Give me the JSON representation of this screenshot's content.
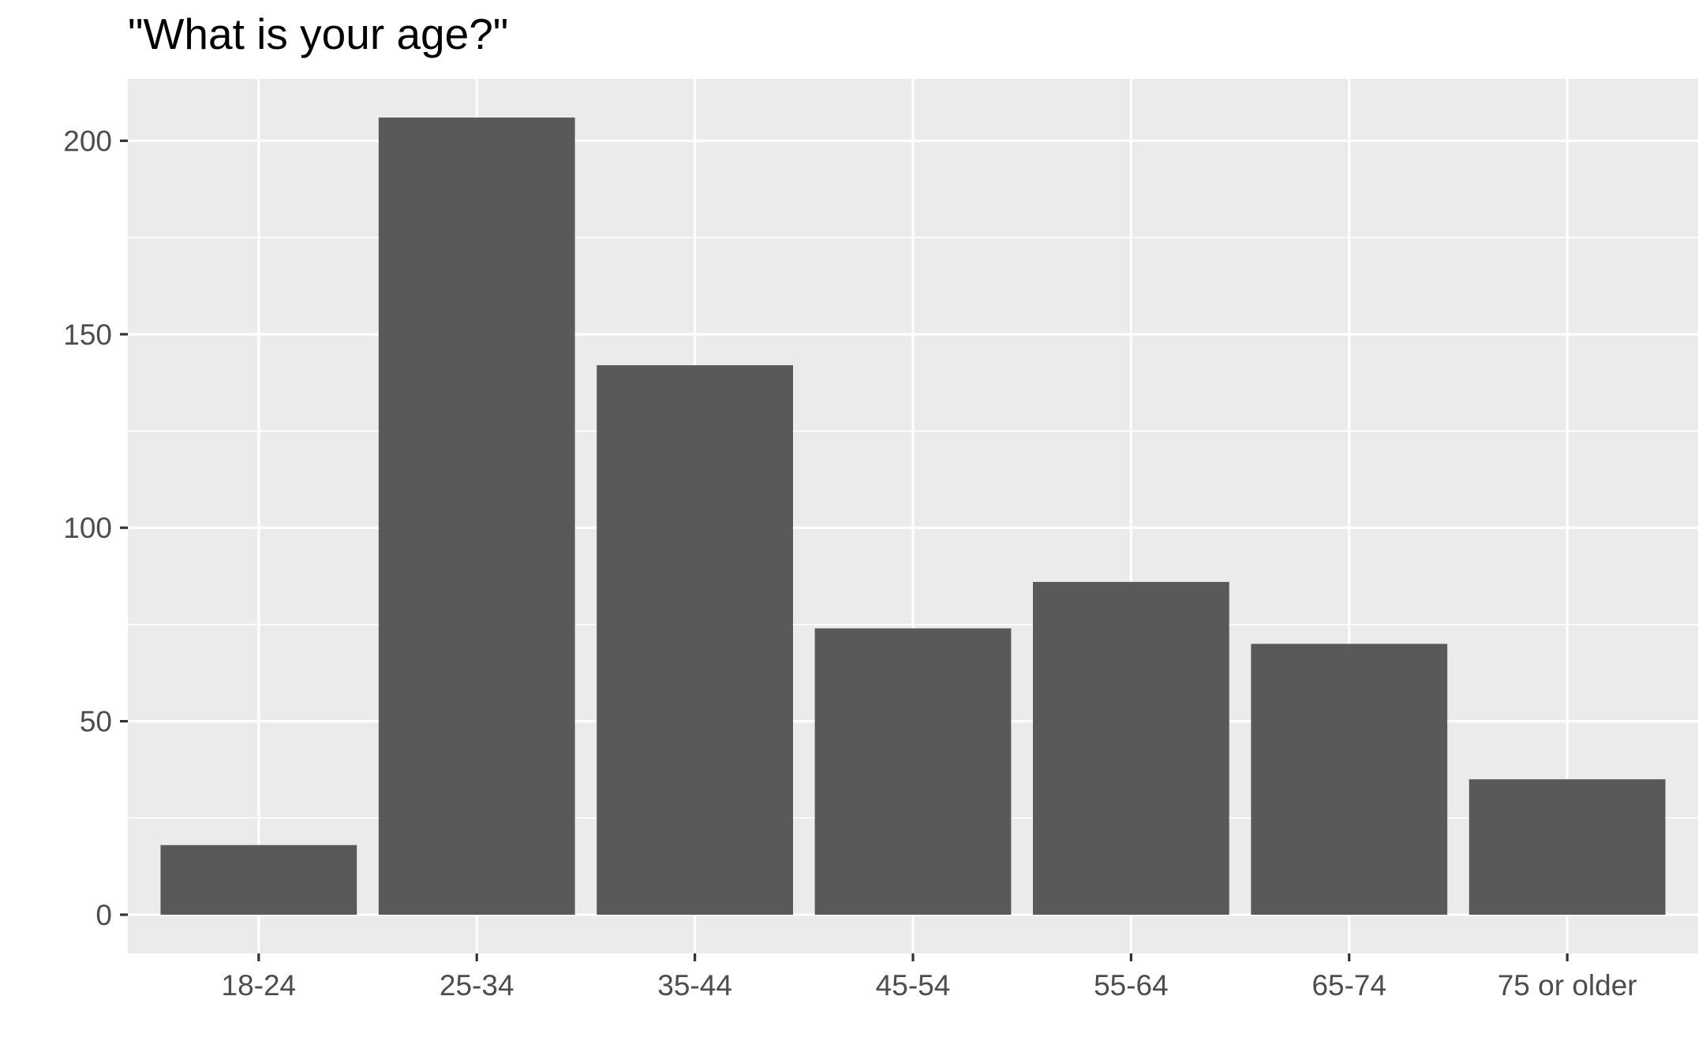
{
  "chart_data": {
    "type": "bar",
    "title": "\"What is your age?\"",
    "xlabel": "",
    "ylabel": "",
    "categories": [
      "18-24",
      "25-34",
      "35-44",
      "45-54",
      "55-64",
      "65-74",
      "75 or older"
    ],
    "values": [
      18,
      206,
      142,
      74,
      86,
      70,
      35
    ],
    "ylim": [
      -10,
      216
    ],
    "yticks": [
      0,
      50,
      100,
      150,
      200
    ],
    "ytick_labels": [
      "0",
      "50",
      "100",
      "150",
      "200"
    ],
    "grid": true,
    "legend": "none",
    "colors": {
      "bar": "#595959",
      "panel_background": "#ebebeb",
      "grid": "#ffffff",
      "tick_text": "#4d4d4d",
      "title_text": "#000000"
    }
  }
}
